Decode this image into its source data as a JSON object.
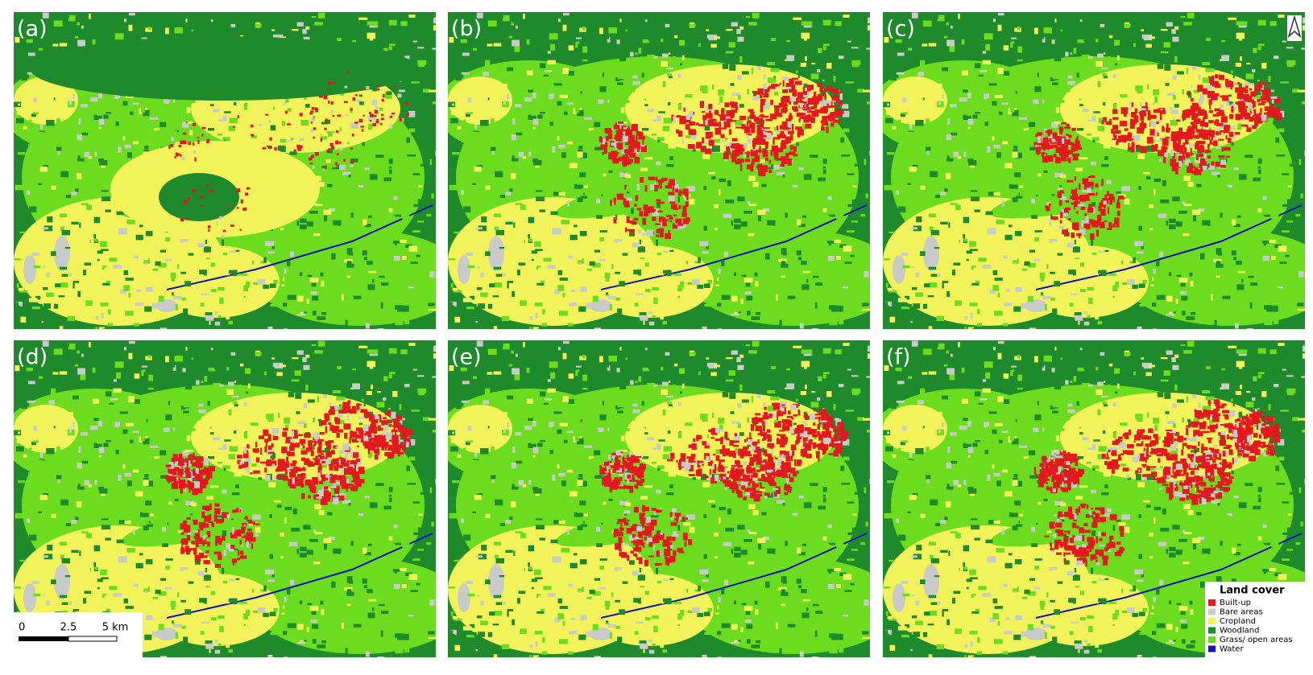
{
  "panels": [
    {
      "label": "(a)"
    },
    {
      "label": "(b)"
    },
    {
      "label": "(c)"
    },
    {
      "label": "(d)"
    },
    {
      "label": "(e)"
    },
    {
      "label": "(f)"
    }
  ],
  "scale_bar": {
    "labels": [
      "0",
      "2.5",
      "5 km"
    ]
  },
  "legend": {
    "title": "Land cover",
    "items": [
      {
        "label": "Built-up",
        "color": "#e3191f"
      },
      {
        "label": "Bare areas",
        "color": "#c9cbc9"
      },
      {
        "label": "Cropland",
        "color": "#f2f25a"
      },
      {
        "label": "Woodland",
        "color": "#1f8a2c"
      },
      {
        "label": "Grass/ open areas",
        "color": "#6cdc1e"
      },
      {
        "label": "Water",
        "color": "#1414b4"
      }
    ]
  }
}
